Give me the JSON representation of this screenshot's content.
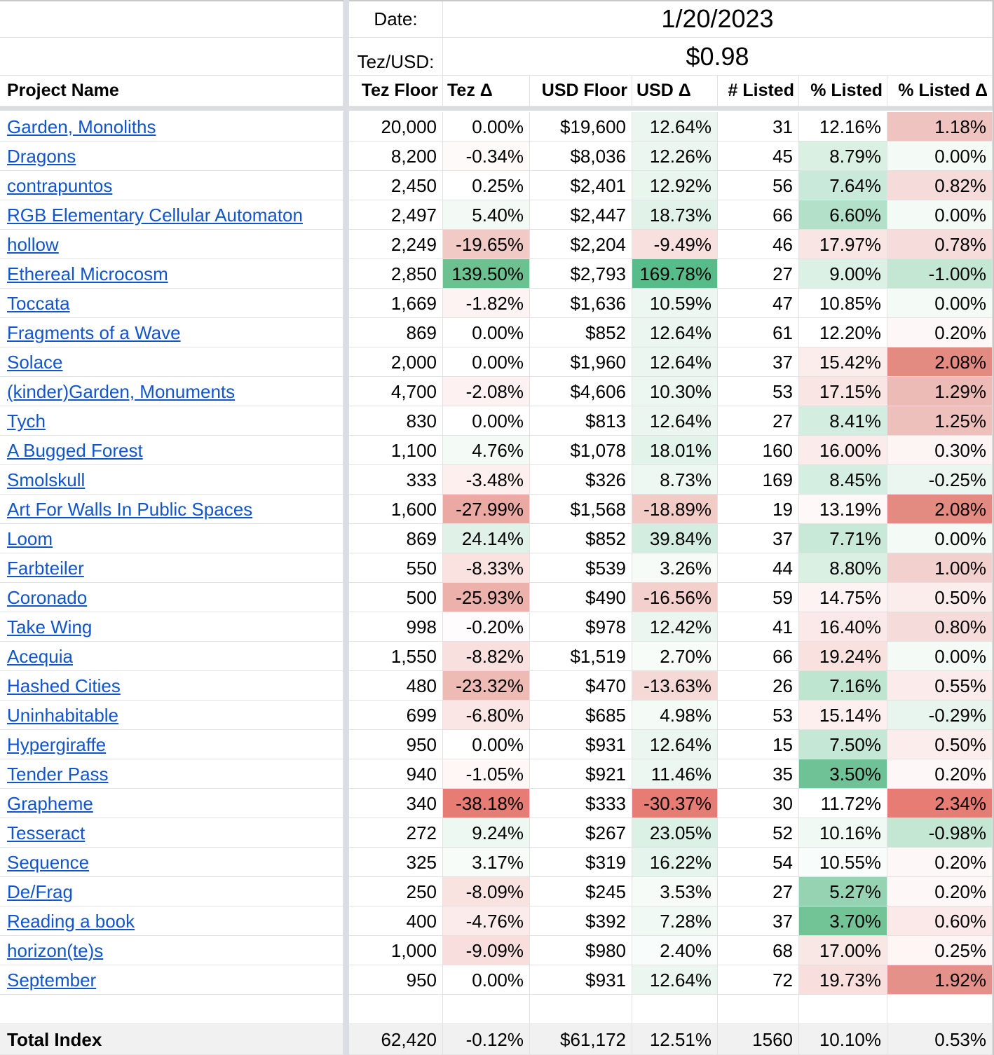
{
  "header": {
    "date_label": "Date:",
    "date_value": "1/20/2023",
    "rate_label": "Tez/USD:",
    "rate_value": "$0.98"
  },
  "columns": [
    "Project Name",
    "Tez Floor",
    "Tez Δ",
    "USD Floor",
    "USD Δ",
    "# Listed",
    "% Listed",
    "% Listed Δ"
  ],
  "rows": [
    {
      "name": "Garden, Monoliths",
      "tez": "20,000",
      "tezd": "0.00%",
      "usd": "$19,600",
      "usdd": "12.64%",
      "listed": "31",
      "pct": "12.16%",
      "pctd": "1.18%",
      "c_tezd": "#ffffff",
      "c_usdd": "#eaf6ef",
      "c_pct": "#ffffff",
      "c_pctd": "#efc3bf"
    },
    {
      "name": "Dragons",
      "tez": "8,200",
      "tezd": "-0.34%",
      "usd": "$8,036",
      "usdd": "12.26%",
      "listed": "45",
      "pct": "8.79%",
      "pctd": "0.00%",
      "c_tezd": "#fefafa",
      "c_usdd": "#eaf6ef",
      "c_pct": "#d9f0e3",
      "c_pctd": "#f4fbf7"
    },
    {
      "name": "contrapuntos",
      "tez": "2,450",
      "tezd": "0.25%",
      "usd": "$2,401",
      "usdd": "12.92%",
      "listed": "56",
      "pct": "7.64%",
      "pctd": "0.82%",
      "c_tezd": "#ffffff",
      "c_usdd": "#e9f6ee",
      "c_pct": "#c9eada",
      "c_pctd": "#f5dbd9"
    },
    {
      "name": "RGB Elementary Cellular Automaton",
      "tez": "2,497",
      "tezd": "5.40%",
      "usd": "$2,447",
      "usdd": "18.73%",
      "listed": "66",
      "pct": "6.60%",
      "pctd": "0.00%",
      "c_tezd": "#f3faf6",
      "c_usdd": "#e1f3e8",
      "c_pct": "#b2e0c8",
      "c_pctd": "#f4fbf7"
    },
    {
      "name": "hollow",
      "tez": "2,249",
      "tezd": "-19.65%",
      "usd": "$2,204",
      "usdd": "-9.49%",
      "listed": "46",
      "pct": "17.97%",
      "pctd": "0.78%",
      "c_tezd": "#f1c9c5",
      "c_usdd": "#f8e0de",
      "c_pct": "#f9e5e3",
      "c_pctd": "#f6dcda"
    },
    {
      "name": "Ethereal Microcosm",
      "tez": "2,850",
      "tezd": "139.50%",
      "usd": "$2,793",
      "usdd": "169.78%",
      "listed": "27",
      "pct": "9.00%",
      "pctd": "-1.00%",
      "c_tezd": "#6bc18f",
      "c_usdd": "#57bb8a",
      "c_pct": "#dcf1e5",
      "c_pctd": "#c4e7d4"
    },
    {
      "name": "Toccata",
      "tez": "1,669",
      "tezd": "-1.82%",
      "usd": "$1,636",
      "usdd": "10.59%",
      "listed": "47",
      "pct": "10.85%",
      "pctd": "0.00%",
      "c_tezd": "#fdf3f2",
      "c_usdd": "#ecf7f1",
      "c_pct": "#ffffff",
      "c_pctd": "#f4fbf7"
    },
    {
      "name": "Fragments of a Wave",
      "tez": "869",
      "tezd": "0.00%",
      "usd": "$852",
      "usdd": "12.64%",
      "listed": "61",
      "pct": "12.20%",
      "pctd": "0.20%",
      "c_tezd": "#ffffff",
      "c_usdd": "#eaf6ef",
      "c_pct": "#ffffff",
      "c_pctd": "#fdf7f7"
    },
    {
      "name": "Solace",
      "tez": "2,000",
      "tezd": "0.00%",
      "usd": "$1,960",
      "usdd": "12.64%",
      "listed": "37",
      "pct": "15.42%",
      "pctd": "2.08%",
      "c_tezd": "#ffffff",
      "c_usdd": "#eaf6ef",
      "c_pct": "#fbedec",
      "c_pctd": "#e38a81"
    },
    {
      "name": "(kinder)Garden, Monuments",
      "tez": "4,700",
      "tezd": "-2.08%",
      "usd": "$4,606",
      "usdd": "10.30%",
      "listed": "53",
      "pct": "17.15%",
      "pctd": "1.29%",
      "c_tezd": "#fdf2f1",
      "c_usdd": "#ecf7f1",
      "c_pct": "#f9e6e4",
      "c_pctd": "#edbbb6"
    },
    {
      "name": "Tych",
      "tez": "830",
      "tezd": "0.00%",
      "usd": "$813",
      "usdd": "12.64%",
      "listed": "27",
      "pct": "8.41%",
      "pctd": "1.25%",
      "c_tezd": "#ffffff",
      "c_usdd": "#eaf6ef",
      "c_pct": "#d3eee0",
      "c_pctd": "#eec0bb"
    },
    {
      "name": "A Bugged Forest",
      "tez": "1,100",
      "tezd": "4.76%",
      "usd": "$1,078",
      "usdd": "18.01%",
      "listed": "160",
      "pct": "16.00%",
      "pctd": "0.30%",
      "c_tezd": "#f4fbf7",
      "c_usdd": "#e2f3e9",
      "c_pct": "#fbebea",
      "c_pctd": "#fdf5f4"
    },
    {
      "name": "Smolskull",
      "tez": "333",
      "tezd": "-3.48%",
      "usd": "$326",
      "usdd": "8.73%",
      "listed": "169",
      "pct": "8.45%",
      "pctd": "-0.25%",
      "c_tezd": "#fcefee",
      "c_usdd": "#eef8f2",
      "c_pct": "#d4eee1",
      "c_pctd": "#eaf6ef"
    },
    {
      "name": "Art For Walls In Public Spaces",
      "tez": "1,600",
      "tezd": "-27.99%",
      "usd": "$1,568",
      "usdd": "-18.89%",
      "listed": "19",
      "pct": "13.19%",
      "pctd": "2.08%",
      "c_tezd": "#eaa9a2",
      "c_usdd": "#f2cbc7",
      "c_pct": "#fef8f8",
      "c_pctd": "#e38a81"
    },
    {
      "name": "Loom",
      "tez": "869",
      "tezd": "24.14%",
      "usd": "$852",
      "usdd": "39.84%",
      "listed": "37",
      "pct": "7.71%",
      "pctd": "0.00%",
      "c_tezd": "#e0f2e8",
      "c_usdd": "#d3eee0",
      "c_pct": "#c8e9d8",
      "c_pctd": "#f4fbf7"
    },
    {
      "name": "Farbteiler",
      "tez": "550",
      "tezd": "-8.33%",
      "usd": "$539",
      "usdd": "3.26%",
      "listed": "44",
      "pct": "8.80%",
      "pctd": "1.00%",
      "c_tezd": "#f9e2e0",
      "c_usdd": "#f6fbf8",
      "c_pct": "#d9f0e3",
      "c_pctd": "#f2d0cd"
    },
    {
      "name": "Coronado",
      "tez": "500",
      "tezd": "-25.93%",
      "usd": "$490",
      "usdd": "-16.56%",
      "listed": "59",
      "pct": "14.75%",
      "pctd": "0.50%",
      "c_tezd": "#ecb1aa",
      "c_usdd": "#f3d0cc",
      "c_pct": "#fdf3f2",
      "c_pctd": "#fbedec"
    },
    {
      "name": "Take Wing",
      "tez": "998",
      "tezd": "-0.20%",
      "usd": "$978",
      "usdd": "12.42%",
      "listed": "41",
      "pct": "16.40%",
      "pctd": "0.80%",
      "c_tezd": "#fefcfc",
      "c_usdd": "#eaf6ef",
      "c_pct": "#fae9e8",
      "c_pctd": "#f5dbd9"
    },
    {
      "name": "Acequia",
      "tez": "1,550",
      "tezd": "-8.82%",
      "usd": "$1,519",
      "usdd": "2.70%",
      "listed": "66",
      "pct": "19.24%",
      "pctd": "0.00%",
      "c_tezd": "#f8e0de",
      "c_usdd": "#f7fcf9",
      "c_pct": "#f8e1df",
      "c_pctd": "#f4fbf7"
    },
    {
      "name": "Hashed Cities",
      "tez": "480",
      "tezd": "-23.32%",
      "usd": "$470",
      "usdd": "-13.63%",
      "listed": "26",
      "pct": "7.16%",
      "pctd": "0.55%",
      "c_tezd": "#edbab4",
      "c_usdd": "#f5d9d6",
      "c_pct": "#bee5d0",
      "c_pctd": "#fbeceb"
    },
    {
      "name": "Uninhabitable",
      "tez": "699",
      "tezd": "-6.80%",
      "usd": "$685",
      "usdd": "4.98%",
      "listed": "53",
      "pct": "15.14%",
      "pctd": "-0.29%",
      "c_tezd": "#fae7e5",
      "c_usdd": "#f4fbf7",
      "c_pct": "#fcefee",
      "c_pctd": "#e8f5ee"
    },
    {
      "name": "Hypergiraffe",
      "tez": "950",
      "tezd": "0.00%",
      "usd": "$931",
      "usdd": "12.64%",
      "listed": "15",
      "pct": "7.50%",
      "pctd": "0.50%",
      "c_tezd": "#ffffff",
      "c_usdd": "#eaf6ef",
      "c_pct": "#c5e8d6",
      "c_pctd": "#fbedec"
    },
    {
      "name": "Tender Pass",
      "tez": "940",
      "tezd": "-1.05%",
      "usd": "$921",
      "usdd": "11.46%",
      "listed": "35",
      "pct": "3.50%",
      "pctd": "0.20%",
      "c_tezd": "#fef7f6",
      "c_usdd": "#ebf7f0",
      "c_pct": "#6fc295",
      "c_pctd": "#fdf7f7"
    },
    {
      "name": "Grapheme",
      "tez": "340",
      "tezd": "-38.18%",
      "usd": "$333",
      "usdd": "-30.37%",
      "listed": "30",
      "pct": "11.72%",
      "pctd": "2.34%",
      "c_tezd": "#e67c73",
      "c_usdd": "#e67c73",
      "c_pct": "#ffffff",
      "c_pctd": "#e67c73"
    },
    {
      "name": "Tesseract",
      "tez": "272",
      "tezd": "9.24%",
      "usd": "$267",
      "usdd": "23.05%",
      "listed": "52",
      "pct": "10.16%",
      "pctd": "-0.98%",
      "c_tezd": "#eef8f2",
      "c_usdd": "#dcf1e5",
      "c_pct": "#f0f9f4",
      "c_pctd": "#c4e7d4"
    },
    {
      "name": "Sequence",
      "tez": "325",
      "tezd": "3.17%",
      "usd": "$319",
      "usdd": "16.22%",
      "listed": "54",
      "pct": "10.55%",
      "pctd": "0.20%",
      "c_tezd": "#f7fcf9",
      "c_usdd": "#e5f4ec",
      "c_pct": "#f8fcfa",
      "c_pctd": "#fdf7f7"
    },
    {
      "name": "De/Frag",
      "tez": "250",
      "tezd": "-8.09%",
      "usd": "$245",
      "usdd": "3.53%",
      "listed": "27",
      "pct": "5.27%",
      "pctd": "0.20%",
      "c_tezd": "#f9e3e1",
      "c_usdd": "#f6fbf8",
      "c_pct": "#95d3b2",
      "c_pctd": "#fdf7f7"
    },
    {
      "name": "Reading a book",
      "tez": "400",
      "tezd": "-4.76%",
      "usd": "$392",
      "usdd": "7.28%",
      "listed": "37",
      "pct": "3.70%",
      "pctd": "0.60%",
      "c_tezd": "#fbebea",
      "c_usdd": "#f0f9f4",
      "c_pct": "#72c497",
      "c_pctd": "#fae9e8"
    },
    {
      "name": "horizon(te)s",
      "tez": "1,000",
      "tezd": "-9.09%",
      "usd": "$980",
      "usdd": "2.40%",
      "listed": "68",
      "pct": "17.00%",
      "pctd": "0.25%",
      "c_tezd": "#f8dfdd",
      "c_usdd": "#f8fcfa",
      "c_pct": "#f9e7e5",
      "c_pctd": "#fdf6f5"
    },
    {
      "name": "September",
      "tez": "950",
      "tezd": "0.00%",
      "usd": "$931",
      "usdd": "12.64%",
      "listed": "72",
      "pct": "19.73%",
      "pctd": "1.92%",
      "c_tezd": "#ffffff",
      "c_usdd": "#eaf6ef",
      "c_pct": "#f8dfdd",
      "c_pctd": "#e4918a"
    }
  ],
  "total": {
    "name": "Total Index",
    "tez": "62,420",
    "tezd": "-0.12%",
    "usd": "$61,172",
    "usdd": "12.51%",
    "listed": "1560",
    "pct": "10.10%",
    "pctd": "0.53%"
  }
}
